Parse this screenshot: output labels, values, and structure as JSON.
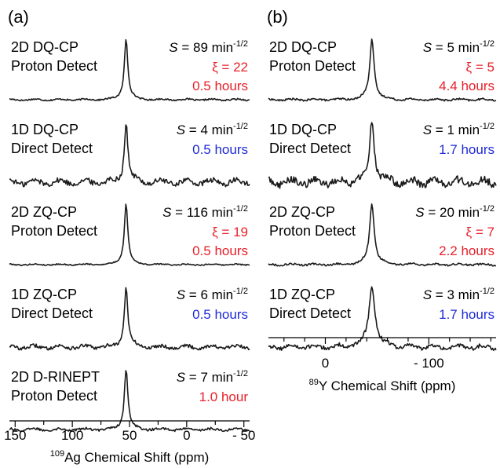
{
  "colors": {
    "black": "#000000",
    "red": "#e8202a",
    "blue": "#1f2bd6"
  },
  "chart_data": [
    {
      "type": "line",
      "panel_label": "(a)",
      "xlabel": "Ag Chemical Shift (ppm)",
      "xlabel_isotope": "109",
      "xlim": [
        155,
        -55
      ],
      "xticks": [
        150,
        100,
        50,
        0,
        -50
      ],
      "xtick_labels": [
        "150",
        "100",
        "50",
        "0",
        "- 50"
      ],
      "peak_ppm": 53,
      "series": [
        {
          "experiment": "2D DQ-CP",
          "detection": "Proton Detect",
          "detection_color": "red",
          "S_label": "S",
          "S_value": " = 89 min",
          "S_exp": "-1/2",
          "xi": "ξ = 22",
          "time": "0.5 hours",
          "time_color": "red",
          "noise": 0.025,
          "width": 2.6
        },
        {
          "experiment": "1D DQ-CP",
          "detection": "Direct Detect",
          "detection_color": "blue",
          "S_label": "S",
          "S_value": " = 4 min",
          "S_exp": "-1/2",
          "xi": "",
          "time": "0.5 hours",
          "time_color": "blue",
          "noise": 0.09,
          "width": 2.6
        },
        {
          "experiment": "2D ZQ-CP",
          "detection": "Proton Detect",
          "detection_color": "red",
          "S_label": "S",
          "S_value": " = 116 min",
          "S_exp": "-1/2",
          "xi": "ξ = 19",
          "time": "0.5 hours",
          "time_color": "red",
          "noise": 0.02,
          "width": 2.6
        },
        {
          "experiment": "1D ZQ-CP",
          "detection": "Direct Detect",
          "detection_color": "blue",
          "S_label": "S",
          "S_value": " = 6 min",
          "S_exp": "-1/2",
          "xi": "",
          "time": "0.5 hours",
          "time_color": "blue",
          "noise": 0.06,
          "width": 2.6
        },
        {
          "experiment": "2D D-RINEPT",
          "detection": "Proton Detect",
          "detection_color": "red",
          "S_label": "S",
          "S_value": " = 7 min",
          "S_exp": "-1/2",
          "xi": "",
          "time": "1.0 hour",
          "time_color": "red",
          "noise": 0.04,
          "width": 2.6
        }
      ]
    },
    {
      "type": "line",
      "panel_label": "(b)",
      "xlabel": "Y Chemical Shift (ppm)",
      "xlabel_isotope": "89",
      "xlim": [
        55,
        -165
      ],
      "xticks": [
        0,
        -100
      ],
      "minor_step": 20,
      "xtick_labels": [
        "0",
        "- 100"
      ],
      "peak_ppm": -45,
      "series": [
        {
          "experiment": "2D DQ-CP",
          "detection": "Proton Detect",
          "detection_color": "red",
          "S_label": "S",
          "S_value": " = 5 min",
          "S_exp": "-1/2",
          "xi": "ξ = 5",
          "time": "4.4 hours",
          "time_color": "red",
          "noise": 0.03,
          "width": 3.2
        },
        {
          "experiment": "1D DQ-CP",
          "detection": "Direct Detect",
          "detection_color": "blue",
          "S_label": "S",
          "S_value": " = 1 min",
          "S_exp": "-1/2",
          "xi": "",
          "time": "1.7 hours",
          "time_color": "blue",
          "noise": 0.12,
          "width": 3.6
        },
        {
          "experiment": "2D ZQ-CP",
          "detection": "Proton Detect",
          "detection_color": "red",
          "S_label": "S",
          "S_value": " = 20 min",
          "S_exp": "-1/2",
          "xi": "ξ = 7",
          "time": "2.2 hours",
          "time_color": "red",
          "noise": 0.03,
          "width": 3.4
        },
        {
          "experiment": "1D ZQ-CP",
          "detection": "Direct Detect",
          "detection_color": "blue",
          "S_label": "S",
          "S_value": " = 3 min",
          "S_exp": "-1/2",
          "xi": "",
          "time": "1.7 hours",
          "time_color": "blue",
          "noise": 0.07,
          "width": 4.5
        }
      ]
    }
  ]
}
